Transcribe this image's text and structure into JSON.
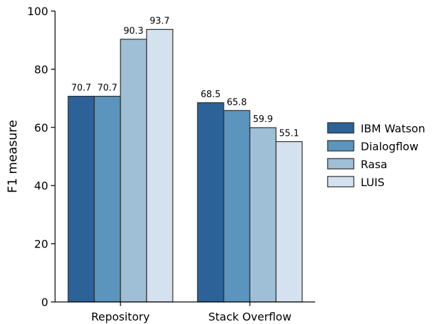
{
  "chart_data": {
    "type": "bar",
    "categories": [
      "Repository",
      "Stack Overflow"
    ],
    "series": [
      {
        "name": "IBM Watson",
        "color": "#2b6399",
        "values": [
          70.7,
          68.5
        ]
      },
      {
        "name": "Dialogflow",
        "color": "#5b94bd",
        "values": [
          70.7,
          65.8
        ]
      },
      {
        "name": "Rasa",
        "color": "#9ebfd6",
        "values": [
          90.3,
          59.9
        ]
      },
      {
        "name": "LUIS",
        "color": "#d4e2ef",
        "values": [
          93.7,
          55.1
        ]
      }
    ],
    "data_labels": [
      [
        "70.7",
        "68.5"
      ],
      [
        "70.7",
        "65.8"
      ],
      [
        "90.3",
        "59.9"
      ],
      [
        "93.7",
        "55.1"
      ]
    ],
    "yticks": [
      "0",
      "20",
      "40",
      "60",
      "80",
      "100"
    ],
    "title": "",
    "xlabel": "",
    "ylabel": "F1 measure",
    "ylim": [
      0,
      100
    ],
    "grid": false,
    "legend_position": "right"
  }
}
